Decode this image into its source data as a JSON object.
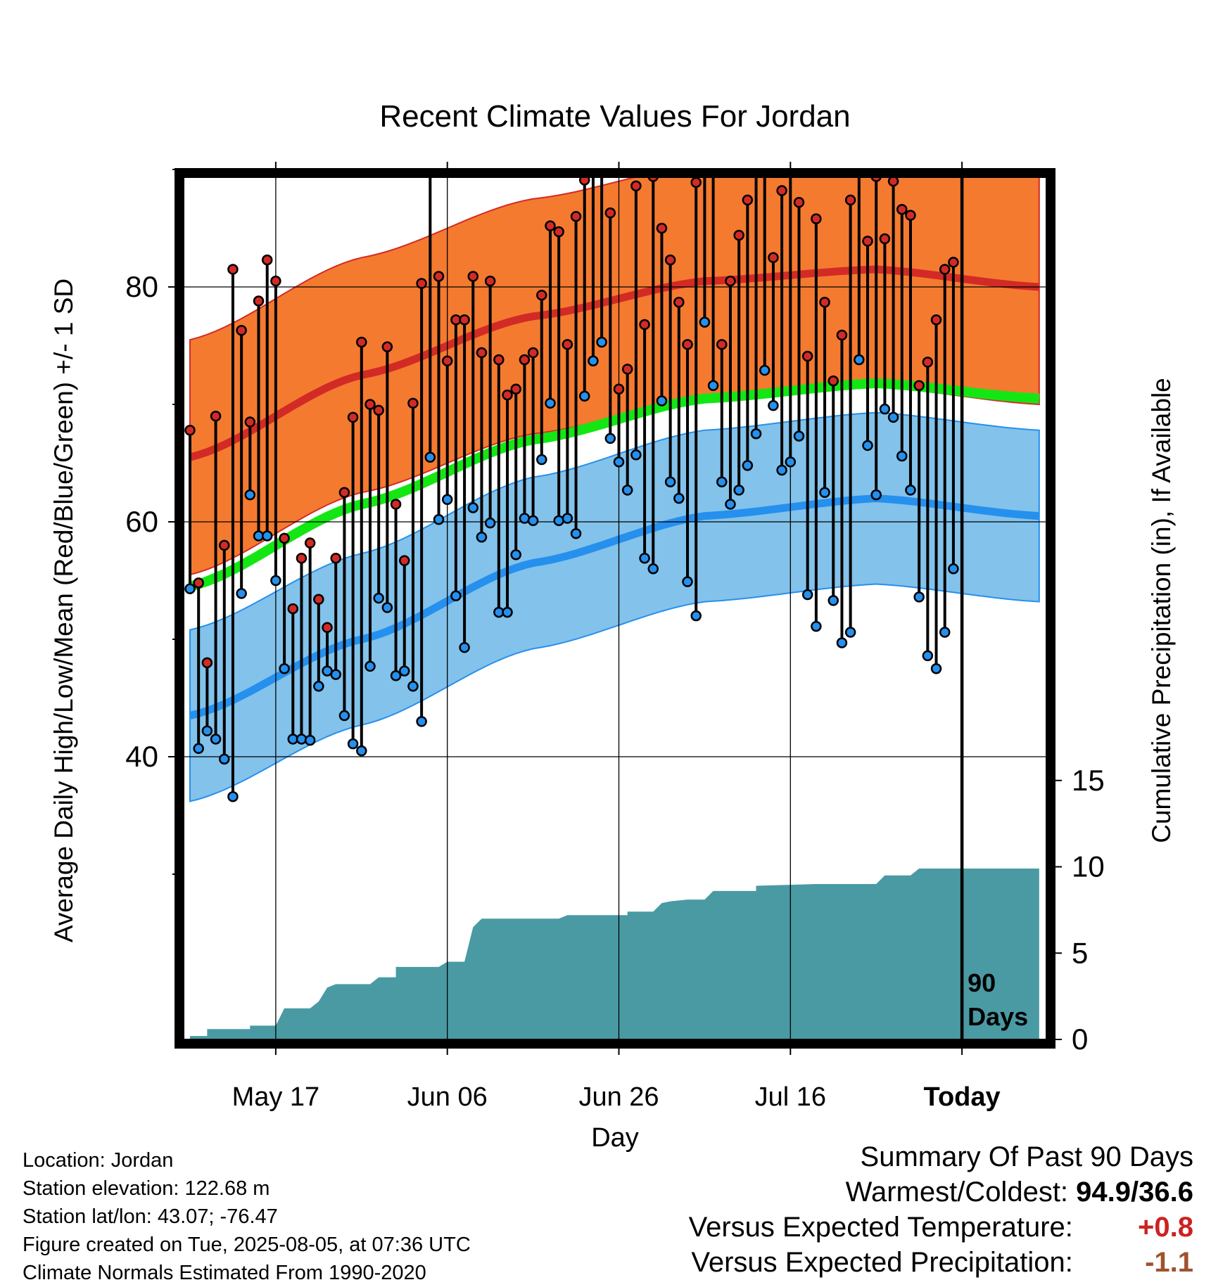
{
  "chart_data": {
    "type": "line",
    "title": "Recent Climate Values For Jordan",
    "xlabel": "Day",
    "ylabel": "Average Daily High/Low/Mean (Red/Blue/Green) +/- 1 SD",
    "y2label": "Cumulative Precipitation (in), If Available",
    "x_tick_labels": [
      "May 17",
      "Jun 06",
      "Jun 26",
      "Jul 16",
      "Today"
    ],
    "y_ticks": [
      "40",
      "60",
      "80"
    ],
    "y2_ticks": [
      "0",
      "5",
      "10",
      "15"
    ],
    "ylim": [
      25,
      98
    ],
    "y2lim": [
      0,
      35
    ],
    "today_marker_text": [
      "90",
      "Days"
    ],
    "colors": {
      "high_band": "#f47a30",
      "high_line": "#d22b26",
      "low_band": "#83c2ea",
      "low_line": "#2590ee",
      "mean_line": "#14e614",
      "precip": "#4a9aa4"
    },
    "normals": {
      "day_offsets": [
        0,
        20,
        40,
        60,
        80,
        99
      ],
      "high_mean": [
        65.5,
        72.5,
        77.5,
        80.5,
        81.5,
        80.0
      ],
      "high_sd": 10.0,
      "low_mean": [
        43.5,
        50.0,
        56.5,
        60.5,
        62.0,
        60.5
      ],
      "low_sd": 7.3,
      "mean": [
        54.5,
        61.5,
        67.0,
        70.5,
        71.8,
        70.5
      ]
    },
    "daily_highs": [
      67.8,
      54.8,
      48.0,
      69.0,
      58.0,
      81.5,
      76.3,
      68.5,
      78.8,
      82.3,
      80.5,
      58.6,
      52.6,
      56.9,
      58.2,
      53.4,
      51.0,
      56.9,
      62.5,
      68.9,
      75.3,
      70.0,
      69.5,
      74.9,
      61.5,
      56.7,
      70.1,
      80.3,
      90.5,
      80.9,
      73.7,
      77.2,
      77.2,
      80.9,
      74.4,
      80.5,
      73.8,
      70.8,
      71.3,
      73.8,
      74.4,
      79.3,
      85.2,
      84.7,
      75.1,
      86.0,
      89.1,
      94.9,
      94.6,
      86.3,
      71.3,
      73.0,
      88.6,
      76.8,
      89.4,
      85.0,
      82.3,
      78.7,
      75.1,
      88.9,
      92.9,
      92.4,
      75.1,
      80.5,
      84.4,
      87.4,
      91.6,
      92.2,
      82.5,
      88.2,
      91.8,
      87.2,
      74.1,
      85.8,
      78.7,
      72.0,
      75.9,
      87.4,
      93.9,
      83.9,
      89.4,
      84.1,
      89.0,
      86.6,
      86.1,
      71.6,
      73.6,
      77.2,
      81.5,
      82.1
    ],
    "daily_lows": [
      54.3,
      40.7,
      42.2,
      41.5,
      39.8,
      36.6,
      53.9,
      62.3,
      58.8,
      58.8,
      55.0,
      47.5,
      41.5,
      41.5,
      41.4,
      46.0,
      47.3,
      47.0,
      43.5,
      41.1,
      40.5,
      47.7,
      53.5,
      52.7,
      46.9,
      47.3,
      46.0,
      43.0,
      65.5,
      60.2,
      61.9,
      53.7,
      49.3,
      61.2,
      58.7,
      59.9,
      52.3,
      52.3,
      57.2,
      60.3,
      60.1,
      65.3,
      70.1,
      60.1,
      60.3,
      59.0,
      70.7,
      73.7,
      75.3,
      67.1,
      65.1,
      62.7,
      65.7,
      56.9,
      56.0,
      70.3,
      63.4,
      62.0,
      54.9,
      52.0,
      77.0,
      71.6,
      63.4,
      61.5,
      62.7,
      64.8,
      67.5,
      72.9,
      69.9,
      64.4,
      65.1,
      67.3,
      53.8,
      51.1,
      62.5,
      53.3,
      49.7,
      50.6,
      73.8,
      66.5,
      62.3,
      69.6,
      68.9,
      65.6,
      62.7,
      53.6,
      48.6,
      47.5,
      50.6,
      56.0
    ],
    "precip_steps": [
      [
        0,
        0.2
      ],
      [
        2,
        0.2
      ],
      [
        2,
        0.6
      ],
      [
        7,
        0.6
      ],
      [
        7,
        0.8
      ],
      [
        10,
        0.8
      ],
      [
        11,
        1.8
      ],
      [
        14,
        1.8
      ],
      [
        15,
        2.2
      ],
      [
        16,
        3.0
      ],
      [
        17,
        3.2
      ],
      [
        21,
        3.2
      ],
      [
        22,
        3.6
      ],
      [
        24,
        3.6
      ],
      [
        24,
        4.2
      ],
      [
        29,
        4.2
      ],
      [
        30,
        4.5
      ],
      [
        32,
        4.5
      ],
      [
        33,
        6.5
      ],
      [
        34,
        7.0
      ],
      [
        43,
        7.0
      ],
      [
        44,
        7.2
      ],
      [
        51,
        7.2
      ],
      [
        51,
        7.4
      ],
      [
        54,
        7.4
      ],
      [
        55,
        7.9
      ],
      [
        56,
        8.0
      ],
      [
        58,
        8.1
      ],
      [
        60,
        8.1
      ],
      [
        61,
        8.6
      ],
      [
        66,
        8.6
      ],
      [
        66,
        8.9
      ],
      [
        73,
        9.0
      ],
      [
        80,
        9.0
      ],
      [
        81,
        9.5
      ],
      [
        84,
        9.5
      ],
      [
        85,
        9.9
      ],
      [
        99,
        9.9
      ]
    ],
    "today_offset": 90
  },
  "location_info": {
    "location": "Location: Jordan",
    "elevation": "Station elevation: 122.68 m",
    "latlon": "Station lat/lon: 43.07; -76.47",
    "created": "Figure created on Tue, 2025-08-05, at 07:36 UTC",
    "normals": "Climate Normals Estimated From 1990-2020"
  },
  "summary": {
    "title": "Summary Of Past 90 Days",
    "warm_cold_label": "Warmest/Coldest:",
    "warm_cold_value": "94.9/36.6",
    "temp_label": "Versus Expected Temperature:",
    "temp_value": "+0.8",
    "temp_color": "#cc2222",
    "precip_label": "Versus Expected Precipitation:",
    "precip_value": "-1.1",
    "precip_color": "#a0522d"
  }
}
